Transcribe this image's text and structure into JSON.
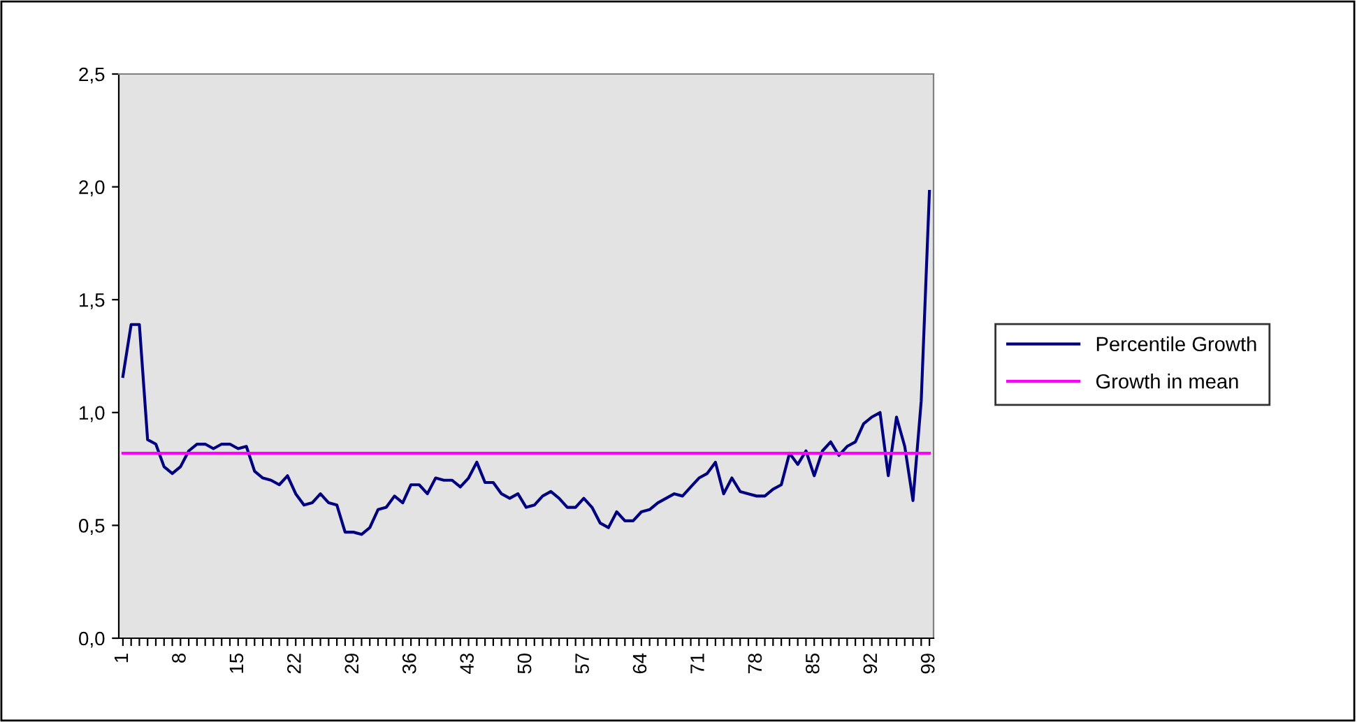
{
  "chart_data": {
    "type": "line",
    "categories": [
      "1",
      null,
      null,
      null,
      null,
      null,
      null,
      "8",
      null,
      null,
      null,
      null,
      null,
      null,
      "15",
      null,
      null,
      null,
      null,
      null,
      null,
      "22",
      null,
      null,
      null,
      null,
      null,
      null,
      "29",
      null,
      null,
      null,
      null,
      null,
      null,
      "36",
      null,
      null,
      null,
      null,
      null,
      null,
      "43",
      null,
      null,
      null,
      null,
      null,
      null,
      "50",
      null,
      null,
      null,
      null,
      null,
      null,
      "57",
      null,
      null,
      null,
      null,
      null,
      null,
      "64",
      null,
      null,
      null,
      null,
      null,
      null,
      "71",
      null,
      null,
      null,
      null,
      null,
      null,
      "78",
      null,
      null,
      null,
      null,
      null,
      null,
      "85",
      null,
      null,
      null,
      null,
      null,
      null,
      "92",
      null,
      null,
      null,
      null,
      null,
      null,
      "99"
    ],
    "series": [
      {
        "name": "Percentile Growth",
        "color": "#000080",
        "values": [
          1.16,
          1.39,
          1.39,
          0.88,
          0.86,
          0.76,
          0.73,
          0.76,
          0.83,
          0.86,
          0.86,
          0.84,
          0.86,
          0.86,
          0.84,
          0.85,
          0.74,
          0.71,
          0.7,
          0.68,
          0.72,
          0.64,
          0.59,
          0.6,
          0.64,
          0.6,
          0.59,
          0.47,
          0.47,
          0.46,
          0.49,
          0.57,
          0.58,
          0.63,
          0.6,
          0.68,
          0.68,
          0.64,
          0.71,
          0.7,
          0.7,
          0.67,
          0.71,
          0.78,
          0.69,
          0.69,
          0.64,
          0.62,
          0.64,
          0.58,
          0.59,
          0.63,
          0.65,
          0.62,
          0.58,
          0.58,
          0.62,
          0.58,
          0.51,
          0.49,
          0.56,
          0.52,
          0.52,
          0.56,
          0.57,
          0.6,
          0.62,
          0.64,
          0.63,
          0.67,
          0.71,
          0.73,
          0.78,
          0.64,
          0.71,
          0.65,
          0.64,
          0.63,
          0.63,
          0.66,
          0.68,
          0.82,
          0.77,
          0.83,
          0.72,
          0.83,
          0.87,
          0.81,
          0.85,
          0.87,
          0.95,
          0.98,
          1.0,
          0.72,
          0.98,
          0.85,
          0.61,
          1.05,
          1.98
        ]
      },
      {
        "name": "Growth in mean",
        "color": "#ff00ff",
        "values": [
          0.82,
          0.82,
          0.82,
          0.82,
          0.82,
          0.82,
          0.82,
          0.82,
          0.82,
          0.82,
          0.82,
          0.82,
          0.82,
          0.82,
          0.82,
          0.82,
          0.82,
          0.82,
          0.82,
          0.82,
          0.82,
          0.82,
          0.82,
          0.82,
          0.82,
          0.82,
          0.82,
          0.82,
          0.82,
          0.82,
          0.82,
          0.82,
          0.82,
          0.82,
          0.82,
          0.82,
          0.82,
          0.82,
          0.82,
          0.82,
          0.82,
          0.82,
          0.82,
          0.82,
          0.82,
          0.82,
          0.82,
          0.82,
          0.82,
          0.82,
          0.82,
          0.82,
          0.82,
          0.82,
          0.82,
          0.82,
          0.82,
          0.82,
          0.82,
          0.82,
          0.82,
          0.82,
          0.82,
          0.82,
          0.82,
          0.82,
          0.82,
          0.82,
          0.82,
          0.82,
          0.82,
          0.82,
          0.82,
          0.82,
          0.82,
          0.82,
          0.82,
          0.82,
          0.82,
          0.82,
          0.82,
          0.82,
          0.82,
          0.82,
          0.82,
          0.82,
          0.82,
          0.82,
          0.82,
          0.82,
          0.82,
          0.82,
          0.82,
          0.82,
          0.82,
          0.82,
          0.82,
          0.82,
          0.82
        ]
      }
    ],
    "ylim": [
      0,
      2.5
    ],
    "yticks": [
      {
        "value": 0,
        "label": "0,0"
      },
      {
        "value": 0.5,
        "label": "0,5"
      },
      {
        "value": 1.0,
        "label": "1,0"
      },
      {
        "value": 1.5,
        "label": "1,5"
      },
      {
        "value": 2.0,
        "label": "2,0"
      },
      {
        "value": 2.5,
        "label": "2,5"
      }
    ],
    "grid": false,
    "legend": "right",
    "marker": "none",
    "line_style": "solid"
  }
}
